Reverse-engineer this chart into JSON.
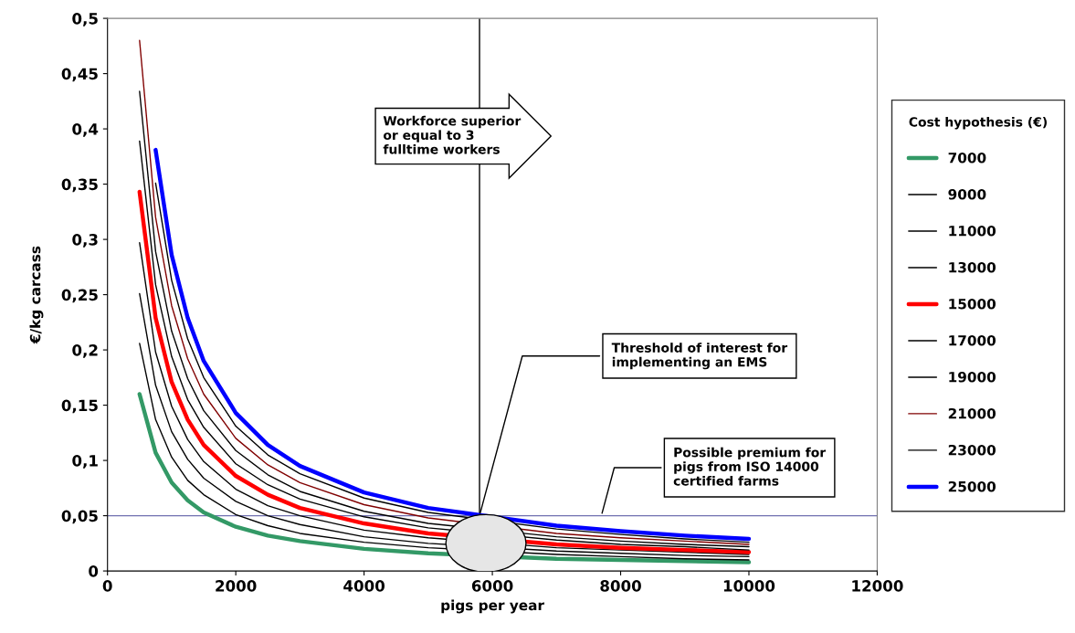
{
  "chart_data": {
    "type": "line",
    "xlabel": "pigs per year",
    "ylabel": "€/kg carcass",
    "legend_title": "Cost hypothesis (€)",
    "legend": "right",
    "grid": false,
    "x": [
      500,
      750,
      1000,
      1250,
      1500,
      2000,
      2500,
      3000,
      4000,
      5000,
      7000,
      8000,
      9000,
      10000
    ],
    "xlim": [
      0,
      12000
    ],
    "xticks": [
      0,
      2000,
      4000,
      6000,
      8000,
      10000,
      12000
    ],
    "ylim": [
      0,
      0.5
    ],
    "yticks": [
      {
        "value": 0,
        "label": "0"
      },
      {
        "value": 0.05,
        "label": "0,05"
      },
      {
        "value": 0.1,
        "label": "0,1"
      },
      {
        "value": 0.15,
        "label": "0,15"
      },
      {
        "value": 0.2,
        "label": "0,2"
      },
      {
        "value": 0.25,
        "label": "0,25"
      },
      {
        "value": 0.3,
        "label": "0,3"
      },
      {
        "value": 0.35,
        "label": "0,35"
      },
      {
        "value": 0.4,
        "label": "0,4"
      },
      {
        "value": 0.45,
        "label": "0,45"
      },
      {
        "value": 0.5,
        "label": "0,5"
      }
    ],
    "series": [
      {
        "name": "7000",
        "color": "#339966",
        "values": [
          0.16,
          0.107,
          0.08,
          0.064,
          0.053,
          0.04,
          0.032,
          0.027,
          0.02,
          0.016,
          0.011,
          0.01,
          0.009,
          0.008
        ]
      },
      {
        "name": "9000",
        "color": "#000000",
        "values": [
          0.206,
          0.137,
          0.103,
          0.082,
          0.069,
          0.051,
          0.041,
          0.034,
          0.026,
          0.021,
          0.015,
          0.013,
          0.011,
          0.01
        ]
      },
      {
        "name": "11000",
        "color": "#000000",
        "values": [
          0.251,
          0.168,
          0.126,
          0.101,
          0.084,
          0.063,
          0.05,
          0.042,
          0.031,
          0.025,
          0.018,
          0.016,
          0.014,
          0.013
        ]
      },
      {
        "name": "13000",
        "color": "#000000",
        "values": [
          0.297,
          0.198,
          0.149,
          0.119,
          0.099,
          0.074,
          0.059,
          0.05,
          0.037,
          0.03,
          0.021,
          0.019,
          0.017,
          0.015
        ]
      },
      {
        "name": "15000",
        "color": "#ff0000",
        "values": [
          0.343,
          0.229,
          0.171,
          0.137,
          0.114,
          0.086,
          0.069,
          0.057,
          0.043,
          0.034,
          0.024,
          0.021,
          0.019,
          0.017
        ]
      },
      {
        "name": "17000",
        "color": "#000000",
        "values": [
          0.389,
          0.259,
          0.194,
          0.155,
          0.13,
          0.097,
          0.078,
          0.065,
          0.049,
          0.039,
          0.028,
          0.024,
          0.022,
          0.019
        ]
      },
      {
        "name": "19000",
        "color": "#000000",
        "values": [
          0.434,
          0.289,
          0.217,
          0.174,
          0.145,
          0.109,
          0.087,
          0.072,
          0.054,
          0.043,
          0.031,
          0.027,
          0.024,
          0.022
        ]
      },
      {
        "name": "21000",
        "color": "#800000",
        "values": [
          0.48,
          0.32,
          0.24,
          0.192,
          0.16,
          0.12,
          0.096,
          0.08,
          0.06,
          0.048,
          0.034,
          0.03,
          0.027,
          0.024
        ]
      },
      {
        "name": "23000",
        "color": "#000000",
        "values": [
          null,
          0.351,
          0.263,
          0.21,
          0.175,
          0.131,
          0.105,
          0.088,
          0.066,
          0.053,
          0.038,
          0.033,
          0.029,
          0.026
        ]
      },
      {
        "name": "25000",
        "color": "#0000ff",
        "values": [
          null,
          0.381,
          0.286,
          0.229,
          0.19,
          0.143,
          0.114,
          0.095,
          0.071,
          0.057,
          0.041,
          0.036,
          0.032,
          0.029
        ]
      }
    ],
    "ref_lines": [
      {
        "axis": "y",
        "value": 0.05,
        "color": "#7070b0"
      },
      {
        "axis": "x",
        "value": 5800,
        "color": "#000000"
      }
    ],
    "annotations": [
      "Workforce superior\nor equal to 3\nfulltime workers",
      {
        "text": "Threshold of interest for\nimplementing an EMS",
        "x": 5800,
        "y": 0.05
      },
      {
        "text": "Possible premium for\npigs from ISO 14000\ncertified farms",
        "x": 7700,
        "y": 0.05
      }
    ]
  }
}
